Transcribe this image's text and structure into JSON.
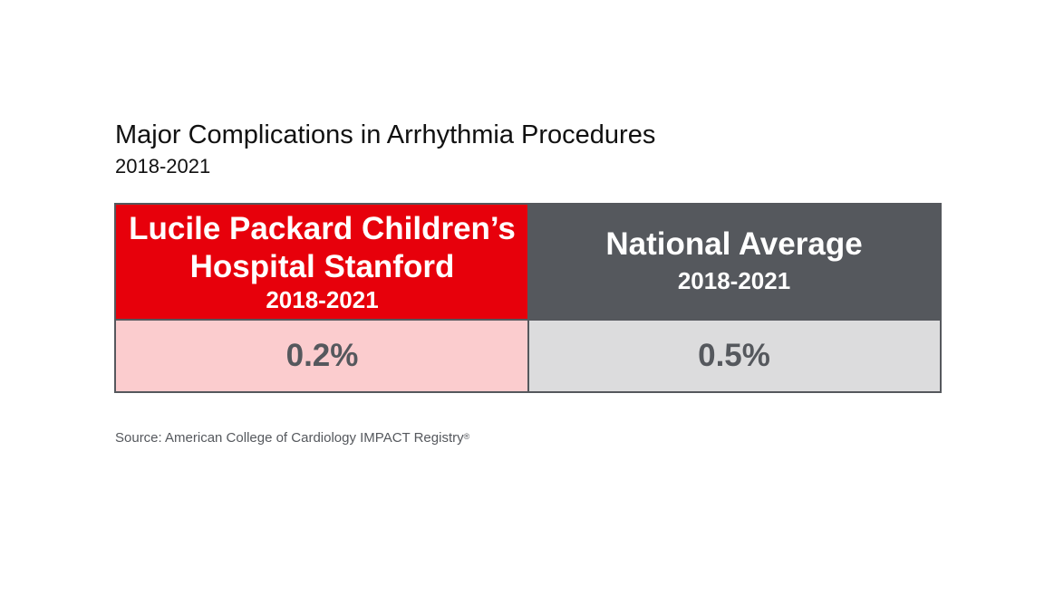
{
  "title": "Major Complications in Arrhythmia Procedures",
  "subtitle": "2018-2021",
  "chart_data": {
    "type": "table",
    "title": "Major Complications in Arrhythmia Procedures",
    "subtitle": "2018-2021",
    "columns": [
      {
        "name_line1": "Lucile Packard Children’s",
        "name_line2": "Hospital Stanford",
        "years": "2018-2021",
        "value": 0.2,
        "value_label": "0.2%",
        "header_color": "#e7000b",
        "value_bg_color": "#fbccce"
      },
      {
        "name_line1": "National Average",
        "years": "2018-2021",
        "value": 0.5,
        "value_label": "0.5%",
        "header_color": "#55585d",
        "value_bg_color": "#dcdcdd"
      }
    ],
    "unit": "%"
  },
  "source": {
    "text": "Source: American College of Cardiology IMPACT Registry",
    "mark": "®"
  },
  "colors": {
    "brand_red": "#e7000b",
    "dark_gray": "#55585d",
    "light_red": "#fbccce",
    "light_gray": "#dcdcdd"
  }
}
